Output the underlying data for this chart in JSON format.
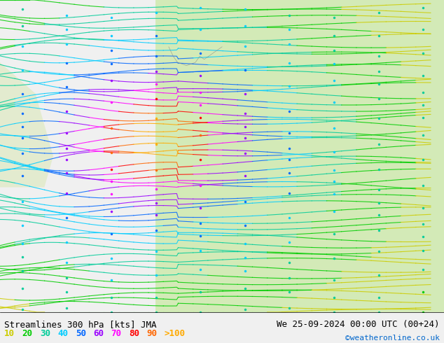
{
  "title_left": "Streamlines 300 hPa [kts] JMA",
  "title_right": "We 25-09-2024 00:00 UTC (00+24)",
  "credit": "©weatheronline.co.uk",
  "legend_values": [
    "10",
    "20",
    "30",
    "40",
    "50",
    "60",
    "70",
    "80",
    "90",
    ">100"
  ],
  "legend_colors": [
    "#cccc00",
    "#00cc00",
    "#00cc99",
    "#00ccff",
    "#0066ff",
    "#9900ff",
    "#ff00ff",
    "#ff0000",
    "#ff6600",
    "#ffaa00"
  ],
  "bg_color": "#e8e8e8",
  "map_bg_light": "#d4edba",
  "map_bg_water": "#ffffff",
  "title_fontsize": 9,
  "legend_fontsize": 9,
  "fig_width": 6.34,
  "fig_height": 4.9,
  "dpi": 100
}
